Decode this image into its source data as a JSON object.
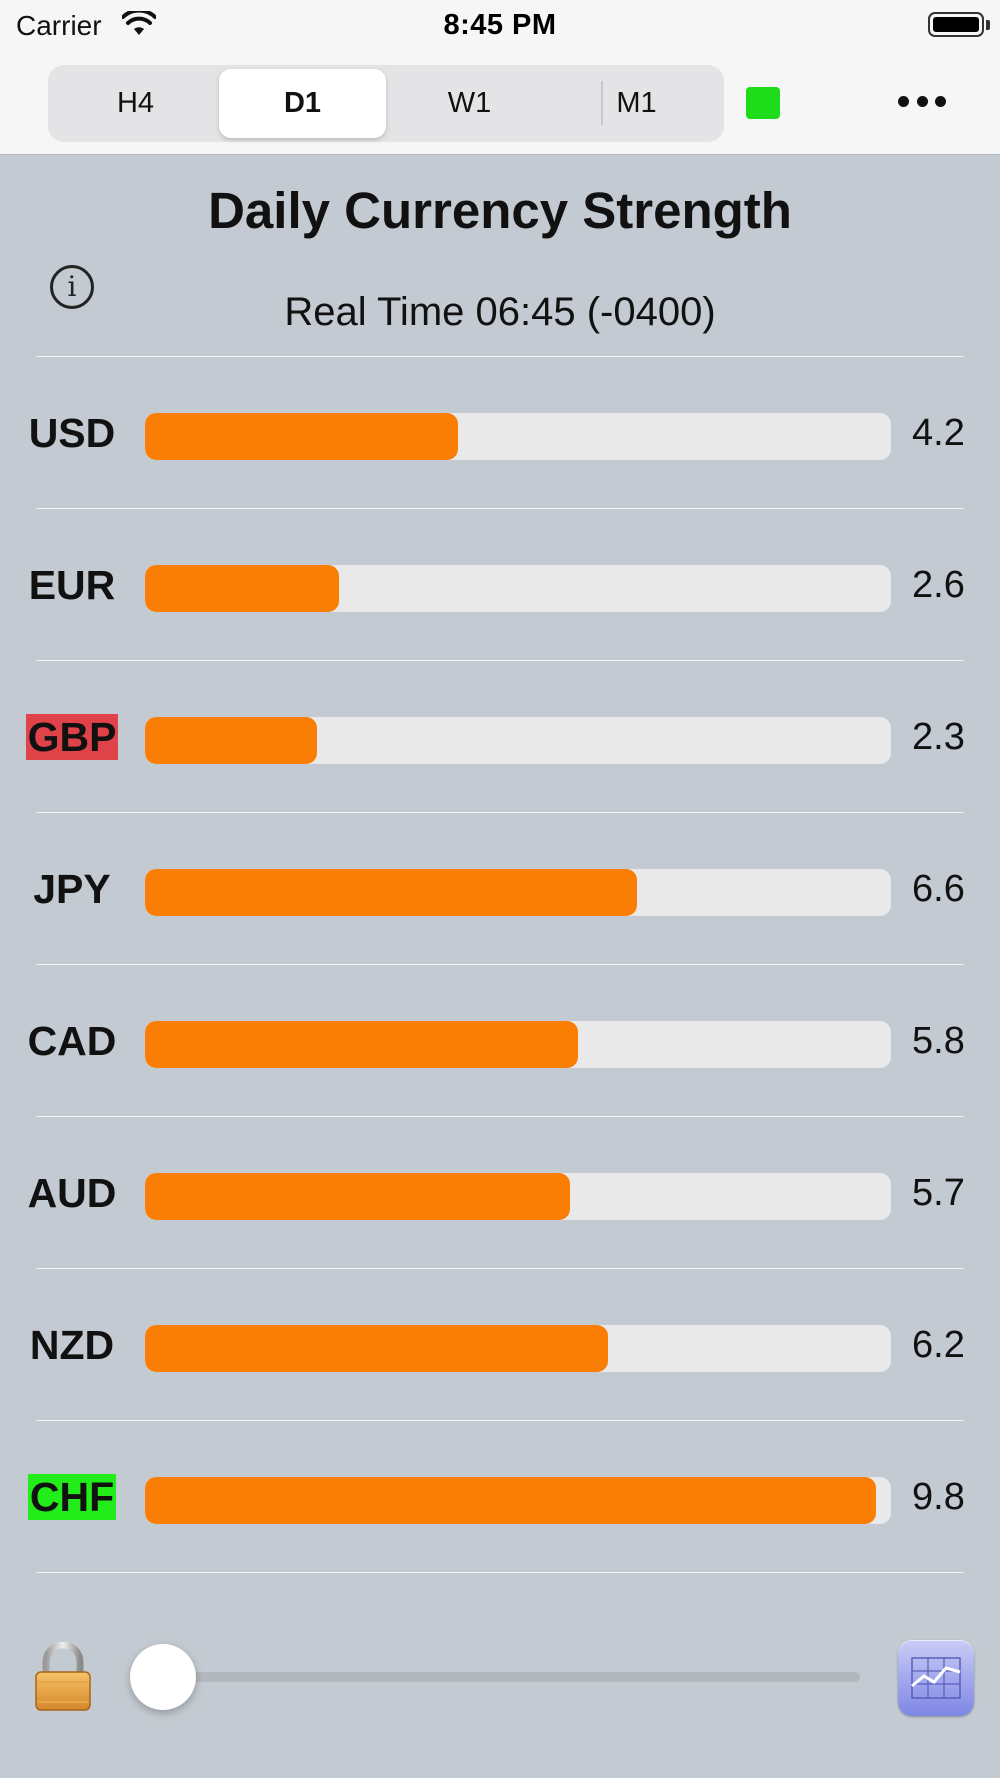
{
  "status_bar": {
    "carrier": "Carrier",
    "time": "8:45 PM"
  },
  "toolbar": {
    "tabs": [
      {
        "label": "H4",
        "active": false
      },
      {
        "label": "D1",
        "active": true
      },
      {
        "label": "W1",
        "active": false
      },
      {
        "label": "M1",
        "active": false
      }
    ],
    "live_indicator_color": "#1fdc1a",
    "more_icon": "ellipsis-icon"
  },
  "header": {
    "title": "Daily Currency Strength",
    "subtitle": "Real Time 06:45 (-0400)",
    "info_icon": "info-icon"
  },
  "strength_scale_max": 10,
  "currencies": [
    {
      "code": "USD",
      "value": "4.2",
      "strength": 4.2,
      "highlight": ""
    },
    {
      "code": "EUR",
      "value": "2.6",
      "strength": 2.6,
      "highlight": ""
    },
    {
      "code": "GBP",
      "value": "2.3",
      "strength": 2.3,
      "highlight": "red"
    },
    {
      "code": "JPY",
      "value": "6.6",
      "strength": 6.6,
      "highlight": ""
    },
    {
      "code": "CAD",
      "value": "5.8",
      "strength": 5.8,
      "highlight": ""
    },
    {
      "code": "AUD",
      "value": "5.7",
      "strength": 5.7,
      "highlight": ""
    },
    {
      "code": "NZD",
      "value": "6.2",
      "strength": 6.2,
      "highlight": ""
    },
    {
      "code": "CHF",
      "value": "9.8",
      "strength": 9.8,
      "highlight": "green"
    }
  ],
  "colors": {
    "bar_fill": "#fb7e04",
    "bar_track": "#e9e9e9",
    "weakest": "#e0424a",
    "strongest": "#22ec1a"
  },
  "bottom": {
    "lock_icon": "lock-icon",
    "slider_value": 0,
    "chart_icon": "chart-icon"
  }
}
